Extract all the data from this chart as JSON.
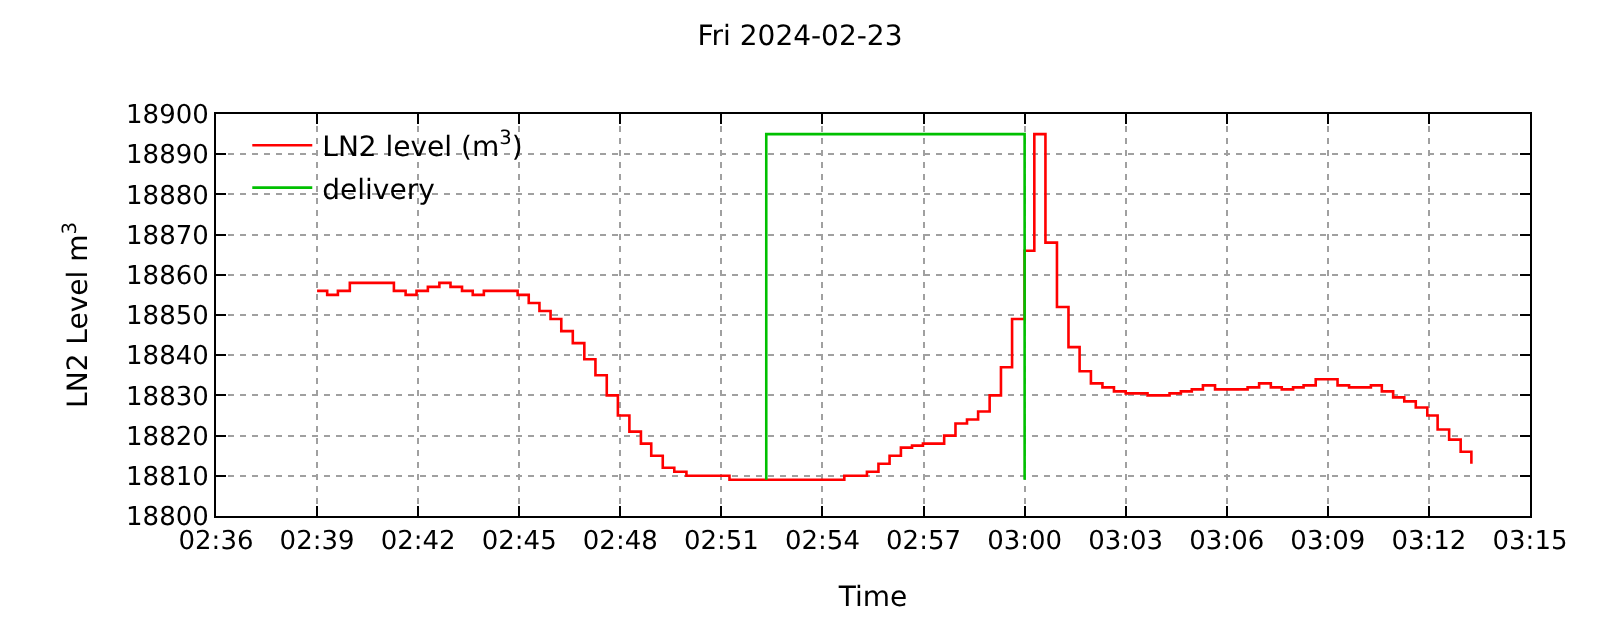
{
  "chart_data": {
    "type": "step",
    "title": "Fri 2024-02-23",
    "xlabel": "Time",
    "ylabel": "LN2 Level m$^{3}$",
    "series": [
      {
        "name": "LN2 level (m$^{3}$)",
        "color": "#ff0000",
        "x": [
          2.65,
          2.655,
          2.6603,
          2.6662,
          2.6718,
          2.688,
          2.6938,
          2.6992,
          2.7048,
          2.7105,
          2.716,
          2.7217,
          2.727,
          2.7325,
          2.7378,
          2.7435,
          2.7492,
          2.7547,
          2.76,
          2.7655,
          2.7708,
          2.7765,
          2.7822,
          2.7877,
          2.7933,
          2.7988,
          2.8045,
          2.8102,
          2.8153,
          2.821,
          2.8267,
          2.8327,
          2.8432,
          2.854,
          2.8722,
          2.875,
          2.8933,
          2.9108,
          2.922,
          2.9277,
          2.9332,
          2.9388,
          2.9443,
          2.9497,
          2.9602,
          2.9658,
          2.9715,
          2.977,
          2.9827,
          2.9883,
          2.9938,
          3.0,
          3.0048,
          3.0103,
          3.016,
          3.0217,
          3.0272,
          3.0328,
          3.0385,
          3.0442,
          3.05,
          3.0608,
          3.0717,
          3.0773,
          3.0827,
          3.0882,
          3.0942,
          3.1103,
          3.116,
          3.1218,
          3.1272,
          3.1328,
          3.138,
          3.144,
          3.1548,
          3.1605,
          3.1713,
          3.1767,
          3.1823,
          3.1878,
          3.1935,
          3.1992,
          3.2043,
          3.21,
          3.2157,
          3.221
        ],
        "values": [
          18856,
          18855,
          18856,
          18858,
          18858,
          18856,
          18855,
          18856,
          18857,
          18858,
          18857,
          18856,
          18855,
          18856,
          18856,
          18856,
          18855,
          18853,
          18851,
          18849,
          18846,
          18843,
          18839,
          18835,
          18830,
          18825,
          18821,
          18818,
          18815,
          18812,
          18811,
          18810,
          18810,
          18809,
          18809,
          18809,
          18809,
          18810,
          18811,
          18813,
          18815,
          18817,
          18817.5,
          18818,
          18820,
          18823,
          18824,
          18826,
          18830,
          18837,
          18849,
          18866,
          18895,
          18868,
          18852,
          18842,
          18836,
          18833,
          18832,
          18831,
          18830.5,
          18830,
          18830.5,
          18831,
          18831.5,
          18832.5,
          18831.5,
          18832,
          18833,
          18832,
          18831.5,
          18832,
          18832.5,
          18834,
          18832.5,
          18832,
          18832.5,
          18831,
          18829.5,
          18828.5,
          18827,
          18825,
          18821.5,
          18819,
          18816,
          18813
        ]
      },
      {
        "name": "delivery",
        "type": "line",
        "color": "#00c000",
        "x": [
          2.8722,
          2.8722,
          3.0,
          3.0
        ],
        "values": [
          18809,
          18895,
          18895,
          18809
        ]
      }
    ],
    "xlim": [
      2.6,
      3.25
    ],
    "xticks": [
      {
        "value": 2.6,
        "label": "02:36"
      },
      {
        "value": 2.65,
        "label": "02:39"
      },
      {
        "value": 2.7,
        "label": "02:42"
      },
      {
        "value": 2.75,
        "label": "02:45"
      },
      {
        "value": 2.8,
        "label": "02:48"
      },
      {
        "value": 2.85,
        "label": "02:51"
      },
      {
        "value": 2.9,
        "label": "02:54"
      },
      {
        "value": 2.95,
        "label": "02:57"
      },
      {
        "value": 3.0,
        "label": "03:00"
      },
      {
        "value": 3.05,
        "label": "03:03"
      },
      {
        "value": 3.1,
        "label": "03:06"
      },
      {
        "value": 3.15,
        "label": "03:09"
      },
      {
        "value": 3.2,
        "label": "03:12"
      },
      {
        "value": 3.25,
        "label": "03:15"
      }
    ],
    "ylim": [
      18800,
      18900
    ],
    "yticks": [
      18800,
      18810,
      18820,
      18830,
      18840,
      18850,
      18860,
      18870,
      18880,
      18890,
      18900
    ],
    "grid": true,
    "legend": "top left",
    "marker": "none",
    "line_style": "solid"
  }
}
